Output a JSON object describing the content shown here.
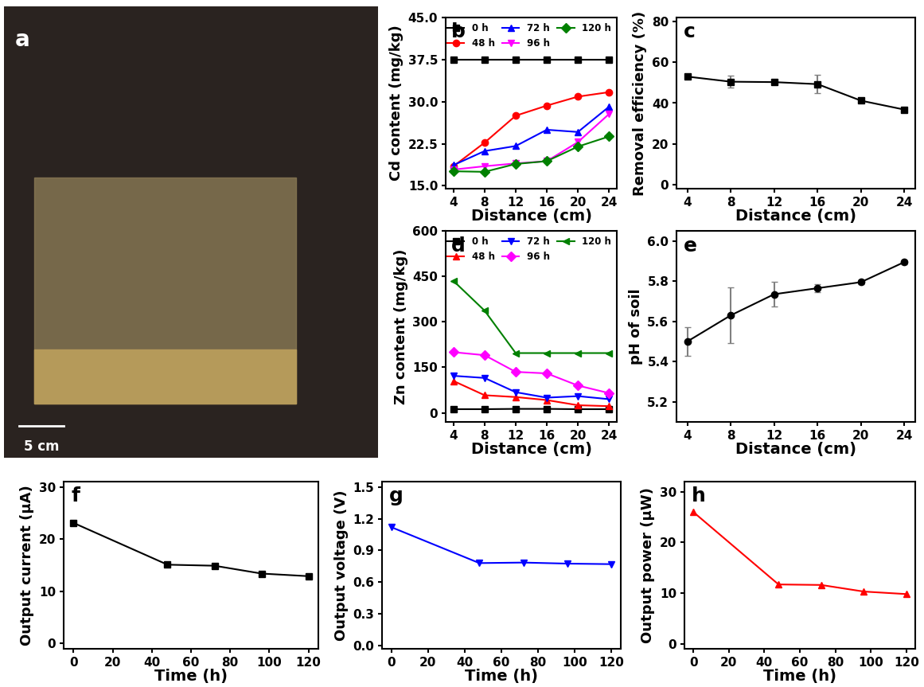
{
  "chart_data": [
    {
      "type": "photo",
      "panel": "a",
      "scale_bar": "5 cm"
    },
    {
      "type": "line",
      "panel": "b",
      "x_label": "Distance (cm)",
      "y_label": "Cd content (mg/kg)",
      "x": [
        4,
        8,
        12,
        16,
        20,
        24
      ],
      "xlim": [
        3,
        25
      ],
      "xticks": [
        4,
        8,
        12,
        16,
        20,
        24
      ],
      "ylim": [
        14.5,
        45
      ],
      "yticks": [
        {
          "value": 15,
          "label": "15.0"
        },
        {
          "value": 22.5,
          "label": "22.5"
        },
        {
          "value": 30,
          "label": "30.0"
        },
        {
          "value": 37.5,
          "label": "37.5"
        },
        {
          "value": 45,
          "label": "45.0"
        }
      ],
      "legend": "upper right",
      "series": [
        {
          "name": "0 h",
          "color": "#000000",
          "marker": "square",
          "values": [
            37.5,
            37.5,
            37.5,
            37.5,
            37.5,
            37.5
          ]
        },
        {
          "name": "48 h",
          "color": "#ff0000",
          "marker": "circle",
          "values": [
            18.5,
            22.7,
            27.5,
            29.3,
            30.9,
            31.7
          ]
        },
        {
          "name": "72 h",
          "color": "#0000ff",
          "marker": "triangle_up",
          "values": [
            18.7,
            21.2,
            22.1,
            25.0,
            24.6,
            29.1
          ]
        },
        {
          "name": "96 h",
          "color": "#ff00ff",
          "marker": "triangle_down",
          "values": [
            17.9,
            18.5,
            19.0,
            19.4,
            22.8,
            27.8
          ]
        },
        {
          "name": "120 h",
          "color": "#008000",
          "marker": "diamond",
          "values": [
            17.6,
            17.5,
            18.9,
            19.4,
            22.0,
            23.8
          ]
        }
      ]
    },
    {
      "type": "line",
      "panel": "c",
      "x_label": "Distance (cm)",
      "y_label": "Removal efficiency (%)",
      "x": [
        4,
        8,
        12,
        16,
        20,
        24
      ],
      "xlim": [
        3,
        25
      ],
      "xticks": [
        4,
        8,
        12,
        16,
        20,
        24
      ],
      "ylim": [
        -2,
        82
      ],
      "yticks": [
        0,
        20,
        40,
        60,
        80
      ],
      "series": [
        {
          "color": "#000000",
          "marker": "square",
          "values": [
            53,
            50.5,
            50.3,
            49.3,
            41.2,
            36.8
          ],
          "errors": [
            1,
            3,
            1,
            4.5,
            1,
            1
          ]
        }
      ]
    },
    {
      "type": "line",
      "panel": "d",
      "x_label": "Distance (cm)",
      "y_label": "Zn content (mg/kg)",
      "x": [
        4,
        8,
        12,
        16,
        20,
        24
      ],
      "xlim": [
        3,
        25
      ],
      "xticks": [
        4,
        8,
        12,
        16,
        20,
        24
      ],
      "ylim": [
        -30,
        600
      ],
      "yticks": [
        0,
        150,
        300,
        450,
        600
      ],
      "legend": "upper right",
      "series": [
        {
          "name": "0 h",
          "color": "#000000",
          "marker": "square",
          "values": [
            12,
            12,
            13,
            13,
            12,
            12
          ]
        },
        {
          "name": "48 h",
          "color": "#ff0000",
          "marker": "triangle_up",
          "values": [
            105,
            58,
            52,
            42,
            25,
            22
          ]
        },
        {
          "name": "72 h",
          "color": "#0000ff",
          "marker": "triangle_down",
          "values": [
            122,
            115,
            68,
            50,
            55,
            45
          ]
        },
        {
          "name": "96 h",
          "color": "#ff00ff",
          "marker": "diamond",
          "values": [
            200,
            190,
            135,
            130,
            90,
            65
          ]
        },
        {
          "name": "120 h",
          "color": "#008000",
          "marker": "triangle_left",
          "values": [
            435,
            337,
            197,
            197,
            197,
            197
          ]
        }
      ]
    },
    {
      "type": "line",
      "panel": "e",
      "x_label": "Distance (cm)",
      "y_label": "pH of soil",
      "x": [
        4,
        8,
        12,
        16,
        20,
        24
      ],
      "xlim": [
        3,
        25
      ],
      "xticks": [
        4,
        8,
        12,
        16,
        20,
        24
      ],
      "ylim": [
        5.1,
        6.05
      ],
      "yticks": [
        5.2,
        5.4,
        5.6,
        5.8,
        6.0
      ],
      "series": [
        {
          "color": "#000000",
          "marker": "circle",
          "values": [
            5.5,
            5.63,
            5.735,
            5.765,
            5.795,
            5.895
          ],
          "errors": [
            0.07,
            0.14,
            0.06,
            0.02,
            0.01,
            0.01
          ]
        }
      ]
    },
    {
      "type": "line",
      "panel": "f",
      "x_label": "Time (h)",
      "y_label": "Output current (μA)",
      "x": [
        0,
        48,
        72,
        96,
        120
      ],
      "xlim": [
        -5,
        125
      ],
      "xticks": [
        0,
        20,
        40,
        60,
        80,
        100,
        120
      ],
      "ylim": [
        -1,
        31
      ],
      "yticks": [
        0,
        10,
        20,
        30
      ],
      "series": [
        {
          "color": "#000000",
          "marker": "square",
          "values": [
            23.1,
            15.1,
            14.9,
            13.4,
            12.9
          ]
        }
      ]
    },
    {
      "type": "line",
      "panel": "g",
      "x_label": "Time (h)",
      "y_label": "Output voltage (V)",
      "x": [
        0,
        48,
        72,
        96,
        120
      ],
      "xlim": [
        -5,
        125
      ],
      "xticks": [
        0,
        20,
        40,
        60,
        80,
        100,
        120
      ],
      "ylim": [
        -0.03,
        1.55
      ],
      "yticks": [
        0.0,
        0.3,
        0.6,
        0.9,
        1.2,
        1.5
      ],
      "series": [
        {
          "color": "#0000ff",
          "marker": "triangle_down",
          "values": [
            1.12,
            0.78,
            0.785,
            0.775,
            0.77
          ]
        }
      ]
    },
    {
      "type": "line",
      "panel": "h",
      "x_label": "Time (h)",
      "y_label": "Output power (μW)",
      "x": [
        0,
        48,
        72,
        96,
        120
      ],
      "xlim": [
        -5,
        125
      ],
      "xticks": [
        0,
        20,
        40,
        60,
        80,
        100,
        120
      ],
      "ylim": [
        -1,
        32
      ],
      "yticks": [
        0,
        10,
        20,
        30
      ],
      "series": [
        {
          "color": "#ff0000",
          "marker": "triangle_up",
          "values": [
            26,
            11.7,
            11.6,
            10.3,
            9.8
          ]
        }
      ]
    }
  ]
}
